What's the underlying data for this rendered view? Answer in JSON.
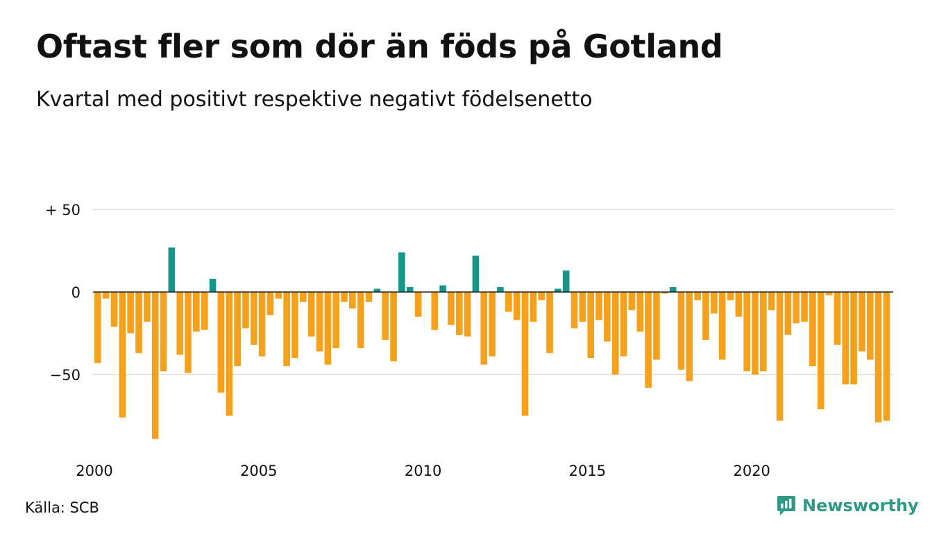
{
  "title": "Oftast fler som dör än föds på Gotland",
  "subtitle": "Kvartal med positivt respektive negativt födelsenetto",
  "source": "Källa: SCB",
  "brand": {
    "name": "Newsworthy",
    "icon": "newsworthy-logo-icon"
  },
  "colors": {
    "positive": "#15968a",
    "negative": "#f5a11c",
    "grid": "#e4e4e4",
    "zero": "#222222"
  },
  "chart_data": {
    "type": "bar",
    "title": "Oftast fler som dör än föds på Gotland",
    "subtitle": "Kvartal med positivt respektive negativt födelsenetto",
    "xlabel": "",
    "ylabel": "",
    "ylim": [
      -93,
      50
    ],
    "yticks": [
      {
        "value": 50,
        "label": "+ 50"
      },
      {
        "value": 0,
        "label": "0"
      },
      {
        "value": -50,
        "label": "−50"
      }
    ],
    "xticks": [
      {
        "year": 2000,
        "label": "2000"
      },
      {
        "year": 2005,
        "label": "2005"
      },
      {
        "year": 2010,
        "label": "2010"
      },
      {
        "year": 2015,
        "label": "2015"
      },
      {
        "year": 2020,
        "label": "2020"
      }
    ],
    "grid": true,
    "start_year": 2000,
    "quarters_per_year": 4,
    "values": [
      -43,
      -4,
      -21,
      -76,
      -25,
      -37,
      -18,
      -89,
      -48,
      27,
      -38,
      -49,
      -24,
      -23,
      8,
      -61,
      -75,
      -45,
      -22,
      -32,
      -39,
      -14,
      -4,
      -45,
      -40,
      -6,
      -27,
      -36,
      -44,
      -34,
      -6,
      -10,
      -34,
      -6,
      2,
      -29,
      -42,
      24,
      3,
      -15,
      0,
      -23,
      4,
      -20,
      -26,
      -27,
      22,
      -44,
      -39,
      3,
      -12,
      -17,
      -75,
      -18,
      -5,
      -37,
      2,
      13,
      -22,
      -18,
      -40,
      -17,
      -30,
      -50,
      -39,
      -11,
      -24,
      -58,
      -41,
      -1,
      3,
      -47,
      -54,
      -5,
      -29,
      -13,
      -41,
      -5,
      -15,
      -48,
      -50,
      -48,
      -11,
      -78,
      -26,
      -19,
      -18,
      -45,
      -71,
      -2,
      -32,
      -56,
      -56,
      -36,
      -41,
      -79,
      -78
    ]
  }
}
